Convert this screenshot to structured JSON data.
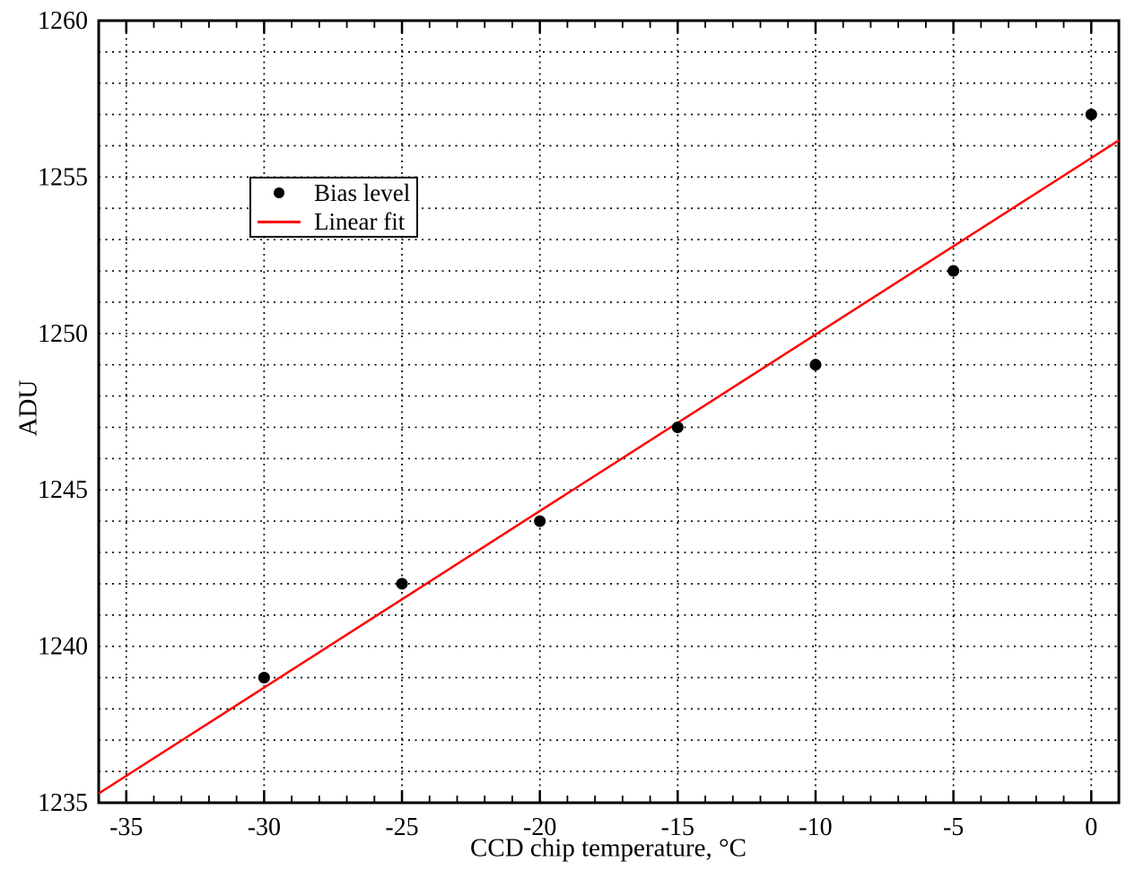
{
  "chart_data": {
    "type": "scatter",
    "title": "",
    "xlabel": "CCD chip temperature, °C",
    "ylabel": "ADU",
    "xlim": [
      -36,
      1
    ],
    "ylim": [
      1235,
      1260
    ],
    "x_major_ticks": [
      -35,
      -30,
      -25,
      -20,
      -15,
      -10,
      -5,
      0
    ],
    "x_major_tick_labels": [
      "-35",
      "-30",
      "-25",
      "-20",
      "-15",
      "-10",
      "-5",
      "0"
    ],
    "x_minor_tick_step": 1,
    "y_major_ticks": [
      1235,
      1240,
      1245,
      1250,
      1255,
      1260
    ],
    "y_major_tick_labels": [
      "1235",
      "1240",
      "1245",
      "1250",
      "1255",
      "1260"
    ],
    "grid": {
      "style": "dotted",
      "horizontal_step": 1,
      "vertical_step": 5
    },
    "legend_position": "upper-left",
    "series": [
      {
        "name": "Bias level",
        "type": "scatter",
        "marker": "filled-circle",
        "color": "#000000",
        "points": [
          [
            -30,
            1239
          ],
          [
            -25,
            1242
          ],
          [
            -20,
            1244
          ],
          [
            -15,
            1247
          ],
          [
            -10,
            1249
          ],
          [
            -5,
            1252
          ],
          [
            0,
            1257
          ]
        ]
      },
      {
        "name": "Linear fit",
        "type": "line",
        "color": "#ff0000",
        "fit": {
          "slope": 0.5643,
          "intercept": 1255.61
        },
        "x_start": -36,
        "x_end": 1
      }
    ]
  },
  "legend": {
    "items": [
      {
        "label": "Bias level",
        "marker": "dot",
        "color": "#000000"
      },
      {
        "label": "Linear fit",
        "marker": "line",
        "color": "#ff0000"
      }
    ]
  },
  "colors": {
    "background": "#ffffff",
    "axis": "#000000",
    "grid": "#000000",
    "marker": "#000000",
    "fit_line": "#ff0000",
    "text": "#000000"
  }
}
